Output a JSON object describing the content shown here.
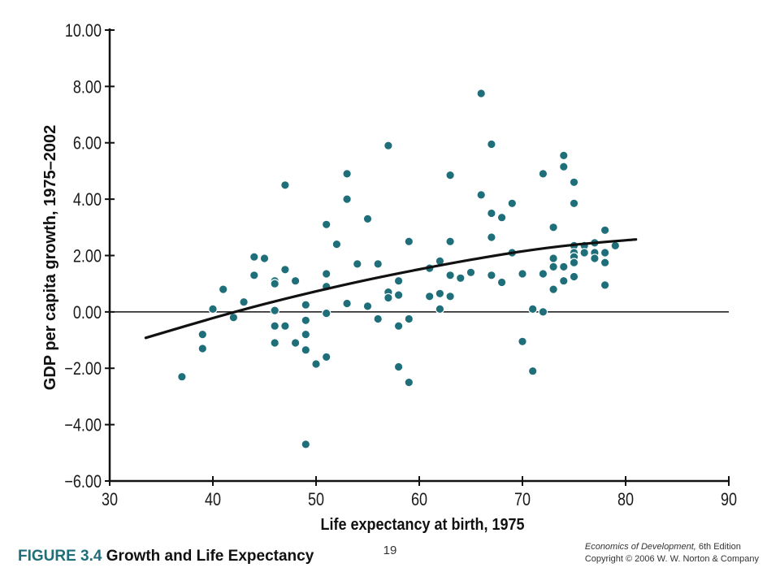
{
  "chart_data": {
    "type": "scatter",
    "xlabel": "Life expectancy at birth, 1975",
    "ylabel": "GDP per capita growth, 1975–2002",
    "xlim": [
      30,
      90
    ],
    "ylim": [
      -6,
      10
    ],
    "x_ticks": [
      30,
      40,
      50,
      60,
      70,
      80,
      90
    ],
    "y_ticks": [
      -6,
      -4,
      -2,
      0,
      2,
      4,
      6,
      8,
      10
    ],
    "x_tick_labels": [
      "30",
      "40",
      "50",
      "60",
      "70",
      "80",
      "90"
    ],
    "y_tick_labels": [
      "−6.00",
      "−4.00",
      "−2.00",
      "0.00",
      "2.00",
      "4.00",
      "6.00",
      "8.00",
      "10.00"
    ],
    "zero_line": 0,
    "grid": false,
    "point_color": "#1f6f7b",
    "points": [
      [
        37.0,
        -2.3
      ],
      [
        39.0,
        -0.8
      ],
      [
        39.0,
        -1.3
      ],
      [
        40.0,
        0.1
      ],
      [
        41.0,
        0.8
      ],
      [
        42.0,
        -0.2
      ],
      [
        43.0,
        0.35
      ],
      [
        44.0,
        1.95
      ],
      [
        44.0,
        1.3
      ],
      [
        45.0,
        1.9
      ],
      [
        46.0,
        1.1
      ],
      [
        46.0,
        1.0
      ],
      [
        46.0,
        0.05
      ],
      [
        46.0,
        -0.5
      ],
      [
        46.0,
        -1.1
      ],
      [
        47.0,
        4.5
      ],
      [
        47.0,
        1.5
      ],
      [
        47.0,
        -0.5
      ],
      [
        48.0,
        1.1
      ],
      [
        48.0,
        -1.1
      ],
      [
        49.0,
        0.25
      ],
      [
        49.0,
        -0.3
      ],
      [
        49.0,
        -0.8
      ],
      [
        49.0,
        -1.35
      ],
      [
        49.0,
        -4.7
      ],
      [
        50.0,
        -1.85
      ],
      [
        51.0,
        3.1
      ],
      [
        51.0,
        1.35
      ],
      [
        51.0,
        0.9
      ],
      [
        51.0,
        -0.05
      ],
      [
        51.0,
        -1.6
      ],
      [
        52.0,
        2.4
      ],
      [
        53.0,
        4.9
      ],
      [
        53.0,
        4.0
      ],
      [
        53.0,
        0.3
      ],
      [
        54.0,
        1.7
      ],
      [
        55.0,
        3.3
      ],
      [
        55.0,
        0.2
      ],
      [
        56.0,
        1.7
      ],
      [
        56.0,
        -0.25
      ],
      [
        57.0,
        5.9
      ],
      [
        57.0,
        0.7
      ],
      [
        57.0,
        0.5
      ],
      [
        58.0,
        1.1
      ],
      [
        58.0,
        0.6
      ],
      [
        58.0,
        -0.5
      ],
      [
        58.0,
        -1.95
      ],
      [
        59.0,
        2.5
      ],
      [
        59.0,
        -0.25
      ],
      [
        59.0,
        -2.5
      ],
      [
        61.0,
        1.55
      ],
      [
        61.0,
        0.55
      ],
      [
        62.0,
        1.8
      ],
      [
        62.0,
        0.65
      ],
      [
        62.0,
        0.1
      ],
      [
        63.0,
        4.85
      ],
      [
        63.0,
        2.5
      ],
      [
        63.0,
        1.3
      ],
      [
        63.0,
        0.55
      ],
      [
        64.0,
        1.2
      ],
      [
        65.0,
        1.4
      ],
      [
        66.0,
        7.75
      ],
      [
        66.0,
        4.15
      ],
      [
        67.0,
        5.95
      ],
      [
        67.0,
        3.5
      ],
      [
        67.0,
        2.65
      ],
      [
        67.0,
        1.3
      ],
      [
        68.0,
        3.35
      ],
      [
        68.0,
        1.05
      ],
      [
        69.0,
        3.85
      ],
      [
        69.0,
        2.1
      ],
      [
        70.0,
        1.35
      ],
      [
        70.0,
        -1.05
      ],
      [
        71.0,
        0.1
      ],
      [
        71.0,
        -2.1
      ],
      [
        72.0,
        4.9
      ],
      [
        72.0,
        1.35
      ],
      [
        72.0,
        0.0
      ],
      [
        73.0,
        3.0
      ],
      [
        73.0,
        1.9
      ],
      [
        73.0,
        1.6
      ],
      [
        73.0,
        0.8
      ],
      [
        74.0,
        5.55
      ],
      [
        74.0,
        5.15
      ],
      [
        74.0,
        1.6
      ],
      [
        74.0,
        1.1
      ],
      [
        75.0,
        4.6
      ],
      [
        75.0,
        3.85
      ],
      [
        75.0,
        2.35
      ],
      [
        75.0,
        2.1
      ],
      [
        75.0,
        1.95
      ],
      [
        75.0,
        1.75
      ],
      [
        75.0,
        1.25
      ],
      [
        76.0,
        2.35
      ],
      [
        76.0,
        2.1
      ],
      [
        77.0,
        2.45
      ],
      [
        77.0,
        2.1
      ],
      [
        77.0,
        1.9
      ],
      [
        78.0,
        2.9
      ],
      [
        78.0,
        2.1
      ],
      [
        78.0,
        1.75
      ],
      [
        78.0,
        0.95
      ],
      [
        79.0,
        2.35
      ]
    ],
    "fit_line": [
      [
        33.5,
        -0.92
      ],
      [
        40,
        -0.22
      ],
      [
        45,
        0.28
      ],
      [
        50,
        0.73
      ],
      [
        55,
        1.14
      ],
      [
        60,
        1.51
      ],
      [
        65,
        1.85
      ],
      [
        70,
        2.15
      ],
      [
        75,
        2.38
      ],
      [
        81,
        2.57
      ]
    ]
  },
  "caption": {
    "figure_number": "FIGURE 3.4",
    "figure_title": "Growth and Life Expectancy"
  },
  "page_number": "19",
  "credit": {
    "book_title": "Economics of Development,",
    "edition": "6th Edition",
    "copyright": "Copyright © 2006 W. W. Norton & Company"
  }
}
